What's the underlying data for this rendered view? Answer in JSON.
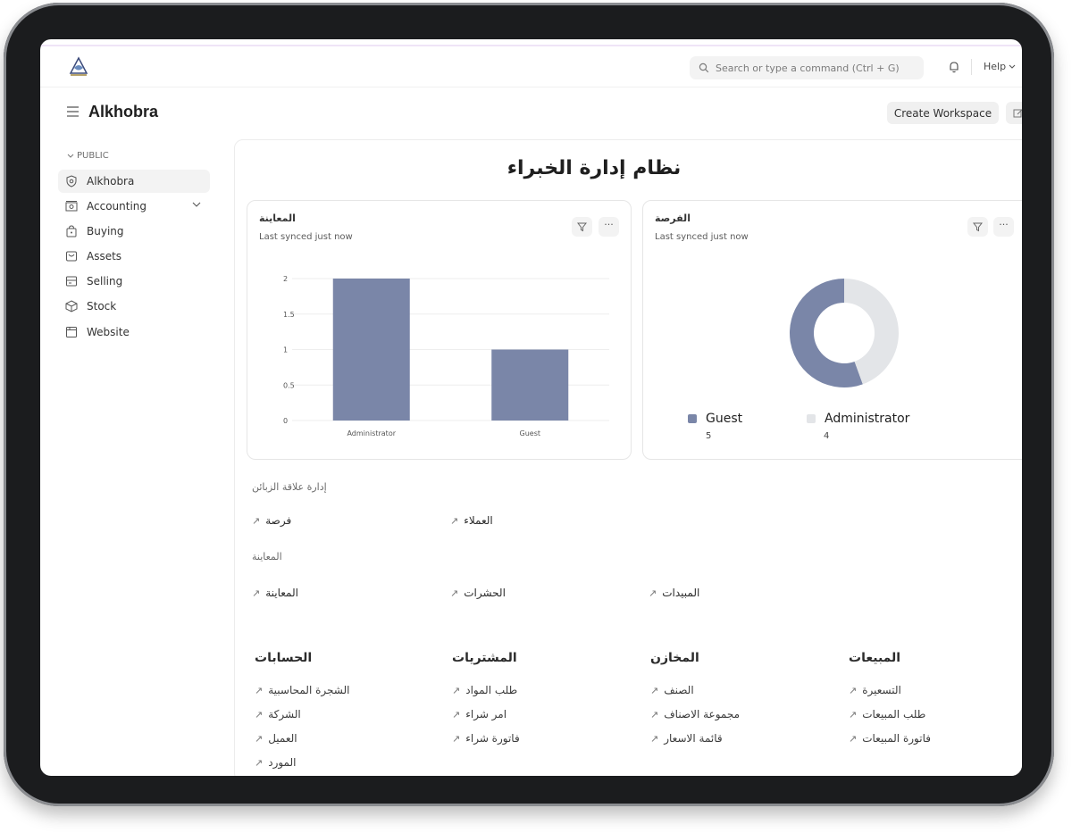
{
  "navbar": {
    "search_placeholder": "Search or type a command (Ctrl + G)",
    "help_label": "Help"
  },
  "header": {
    "title": "Alkhobra",
    "create_workspace": "Create Workspace"
  },
  "sidebar": {
    "section": "PUBLIC",
    "items": [
      {
        "label": "Alkhobra",
        "icon": "shield-icon"
      },
      {
        "label": "Accounting",
        "icon": "money-icon"
      },
      {
        "label": "Buying",
        "icon": "shopping-bag-icon"
      },
      {
        "label": "Assets",
        "icon": "package-icon"
      },
      {
        "label": "Selling",
        "icon": "receipt-icon"
      },
      {
        "label": "Stock",
        "icon": "box-icon"
      },
      {
        "label": "Website",
        "icon": "browser-icon"
      }
    ]
  },
  "workspace": {
    "title": "نظام إدارة الخبراء"
  },
  "charts": {
    "bar": {
      "title": "المعاينة",
      "subtitle": "Last synced just now"
    },
    "donut": {
      "title": "الفرصة",
      "subtitle": "Last synced just now",
      "legend": [
        {
          "label": "Guest",
          "value": "5"
        },
        {
          "label": "Administrator",
          "value": "4"
        }
      ]
    }
  },
  "chart_data": [
    {
      "type": "bar",
      "title": "المعاينة",
      "categories": [
        "Administrator",
        "Guest"
      ],
      "values": [
        2,
        1
      ],
      "ylim": [
        0,
        2
      ],
      "yticks": [
        "0",
        "0.5",
        "1",
        "1.5",
        "2"
      ],
      "color": "#7a86a8"
    },
    {
      "type": "pie",
      "title": "الفرصة",
      "categories": [
        "Guest",
        "Administrator"
      ],
      "values": [
        5,
        4
      ],
      "colors": [
        "#7a86a8",
        "#e3e5e8"
      ]
    }
  ],
  "shortcuts": {
    "crm_label": "إدارة علاقة الزبائن",
    "crm_links": [
      "فرصة",
      "العملاء"
    ],
    "inspection_label": "المعاينة",
    "inspection_links": [
      "المعاينة",
      "الحشرات",
      "المبيدات"
    ]
  },
  "cards": [
    {
      "title": "الحسابات",
      "links": [
        "الشجرة المحاسبية",
        "الشركة",
        "العميل",
        "المورد"
      ]
    },
    {
      "title": "المشتريات",
      "links": [
        "طلب المواد",
        "امر شراء",
        "فاتورة شراء"
      ]
    },
    {
      "title": "المخازن",
      "links": [
        "الصنف",
        "مجموعة الاصناف",
        "قائمة الاسعار"
      ]
    },
    {
      "title": "المبيعات",
      "links": [
        "التسعيرة",
        "طلب المبيعات",
        "فاتورة المبيعات"
      ]
    }
  ],
  "colors": {
    "accent": "#7a86a8",
    "muted": "#e3e5e8",
    "frame": "#1b1c1e"
  }
}
